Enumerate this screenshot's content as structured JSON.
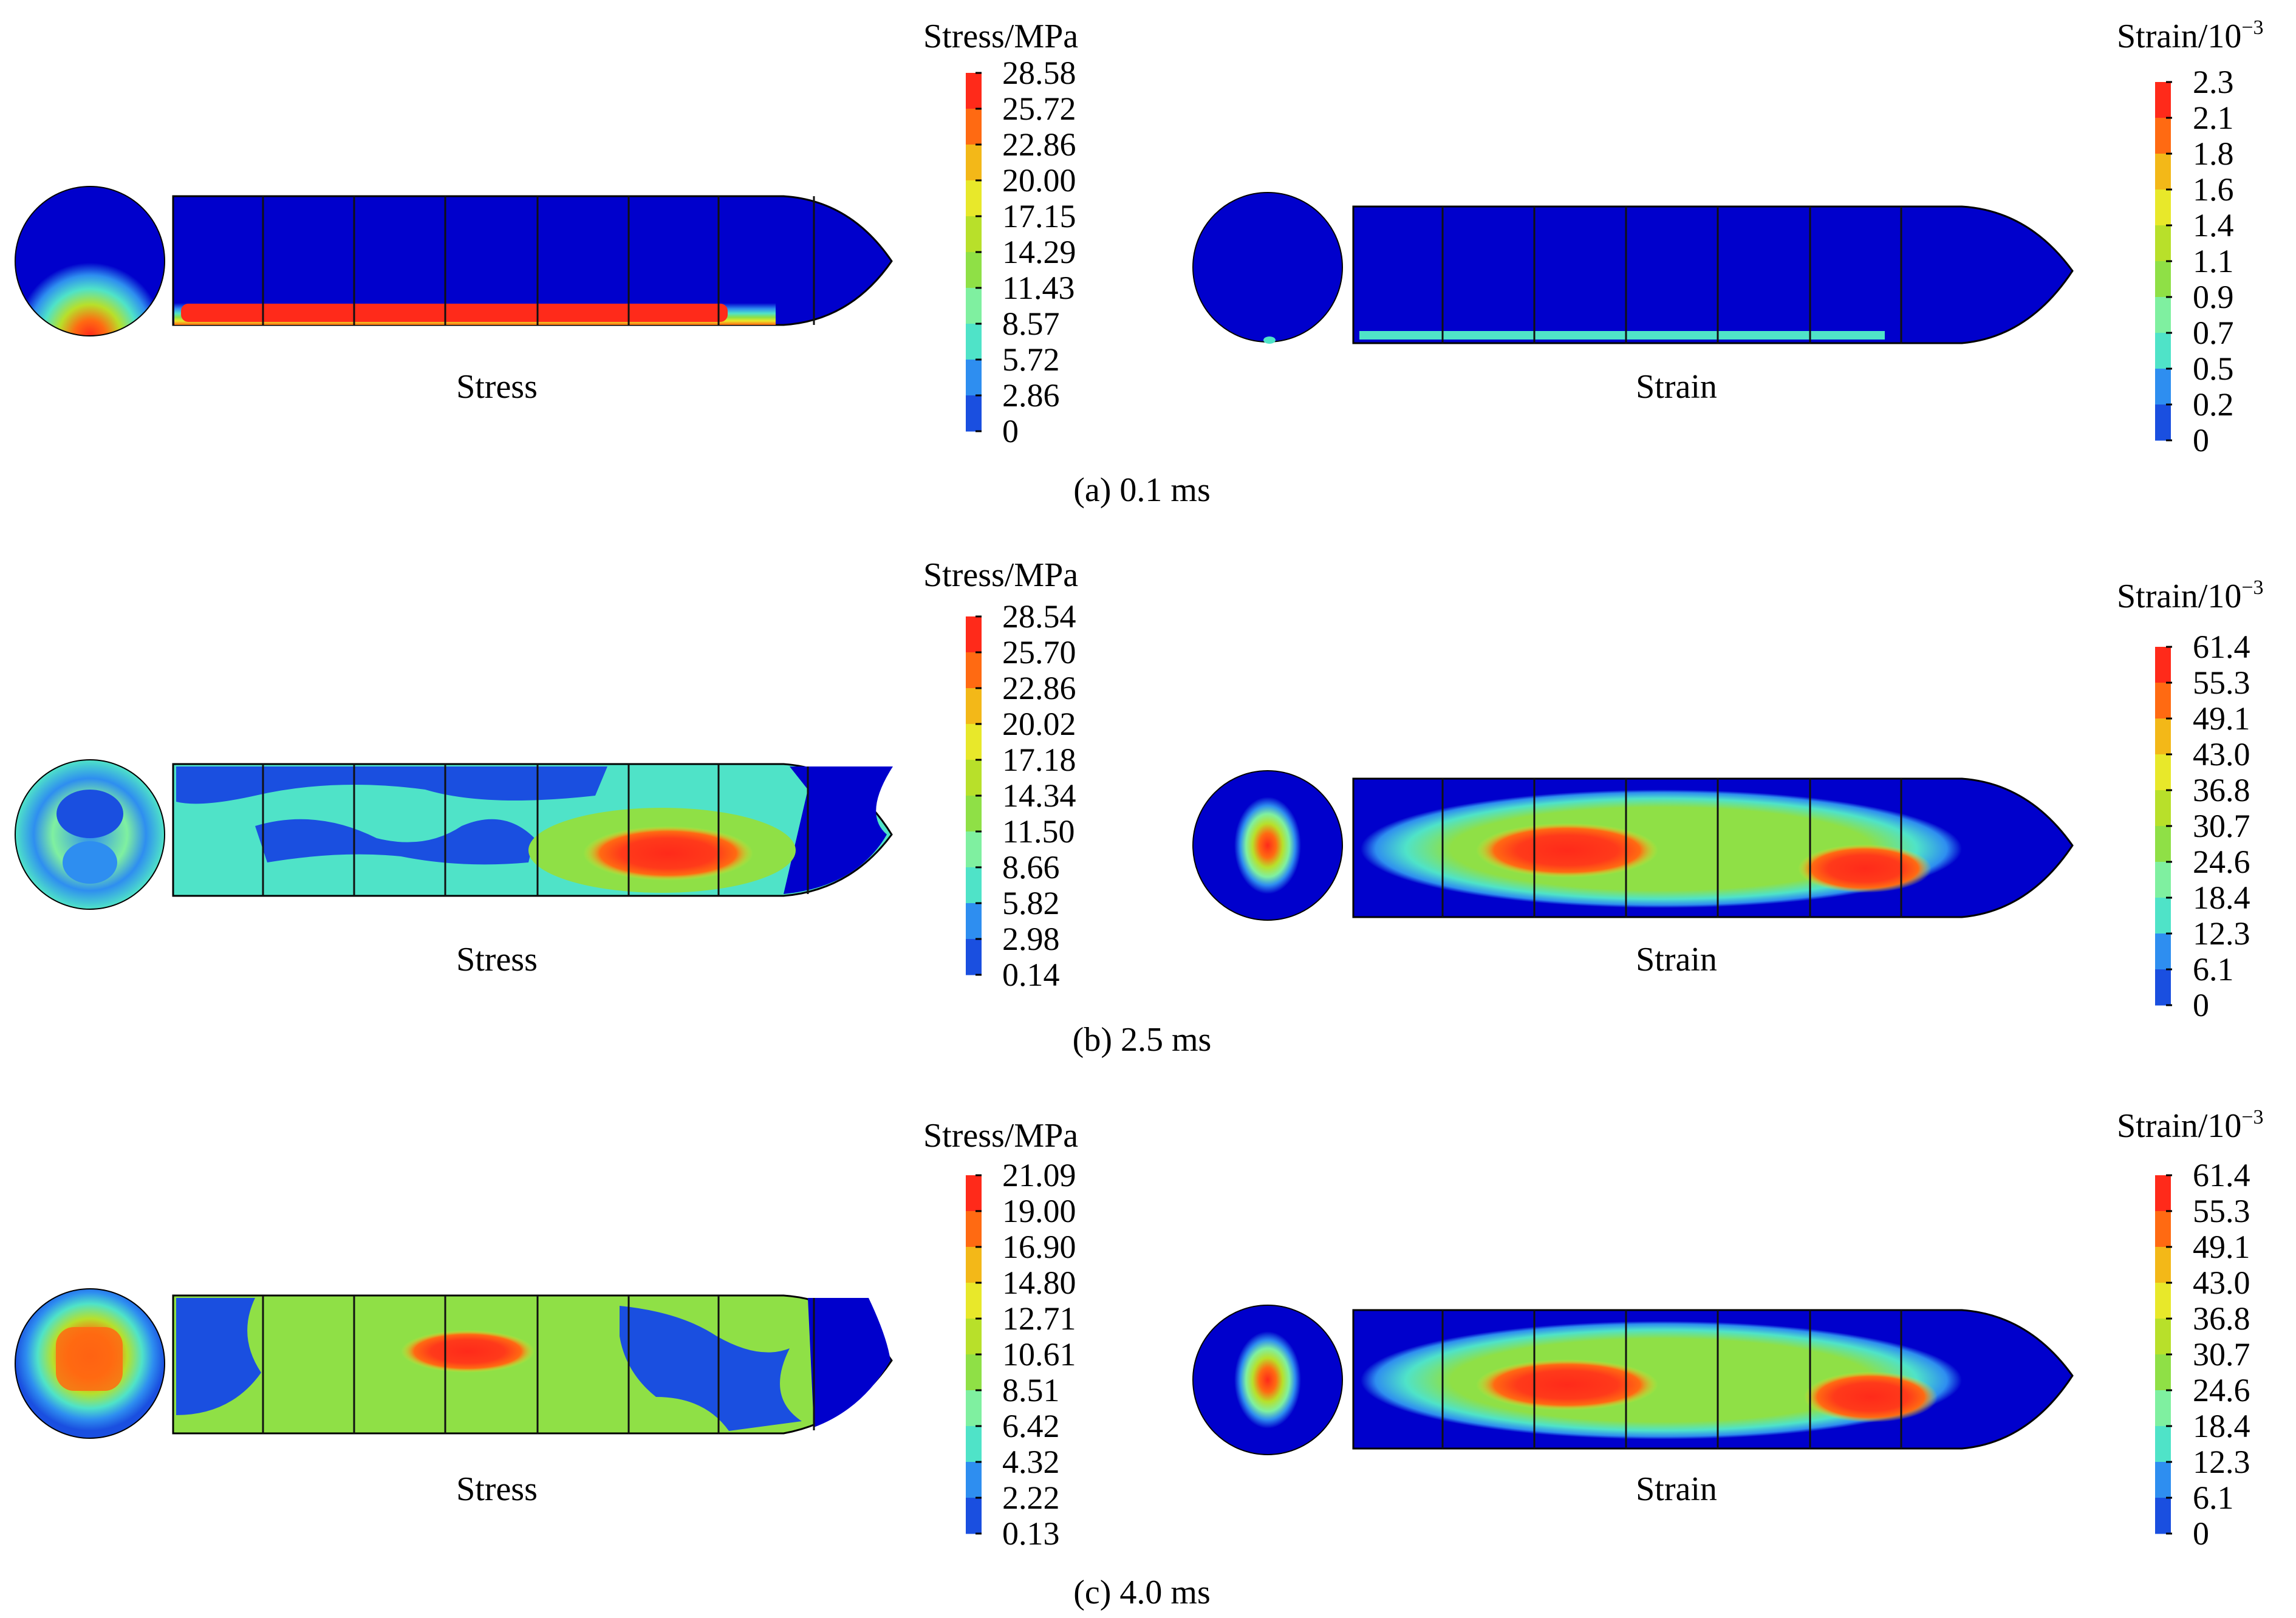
{
  "colors": {
    "background": "#ffffff",
    "legend_levels": [
      "#0000cc",
      "#1a4fe0",
      "#2e8ef0",
      "#4fe3c8",
      "#7ff0a0",
      "#8fe046",
      "#b8e02a",
      "#e8e82a",
      "#f3b818",
      "#ff6a12",
      "#ff2a1a"
    ],
    "outline": "#000000",
    "element_line": "#111111"
  },
  "palette_names": [
    "deep-blue",
    "blue",
    "light-blue",
    "cyan",
    "aquamarine",
    "green",
    "yellow-green",
    "yellow",
    "orange",
    "red-orange",
    "red"
  ],
  "rows": [
    {
      "caption": "(a) 0.1 ms",
      "stress": {
        "label": "Stress",
        "scale_title": "Stress/MPa",
        "ticks": [
          "28.58",
          "25.72",
          "22.86",
          "20.00",
          "17.15",
          "14.29",
          "11.43",
          "8.57",
          "5.72",
          "2.86",
          "0"
        ]
      },
      "strain": {
        "label": "Strain",
        "scale_title": "Strain/10",
        "scale_exponent": "−3",
        "ticks": [
          "2.3",
          "2.1",
          "1.8",
          "1.6",
          "1.4",
          "1.1",
          "0.9",
          "0.7",
          "0.5",
          "0.2",
          "0"
        ]
      }
    },
    {
      "caption": "(b) 2.5 ms",
      "stress": {
        "label": "Stress",
        "scale_title": "Stress/MPa",
        "ticks": [
          "28.54",
          "25.70",
          "22.86",
          "20.02",
          "17.18",
          "14.34",
          "11.50",
          "8.66",
          "5.82",
          "2.98",
          "0.14"
        ]
      },
      "strain": {
        "label": "Strain",
        "scale_title": "Strain/10",
        "scale_exponent": "−3",
        "ticks": [
          "61.4",
          "55.3",
          "49.1",
          "43.0",
          "36.8",
          "30.7",
          "24.6",
          "18.4",
          "12.3",
          "6.1",
          "0"
        ]
      }
    },
    {
      "caption": "(c) 4.0 ms",
      "stress": {
        "label": "Stress",
        "scale_title": "Stress/MPa",
        "ticks": [
          "21.09",
          "19.00",
          "16.90",
          "14.80",
          "12.71",
          "10.61",
          "8.51",
          "6.42",
          "4.32",
          "2.22",
          "0.13"
        ]
      },
      "strain": {
        "label": "Strain",
        "scale_title": "Strain/10",
        "scale_exponent": "−3",
        "ticks": [
          "61.4",
          "55.3",
          "49.1",
          "43.0",
          "36.8",
          "30.7",
          "24.6",
          "18.4",
          "12.3",
          "6.1",
          "0"
        ]
      }
    }
  ]
}
